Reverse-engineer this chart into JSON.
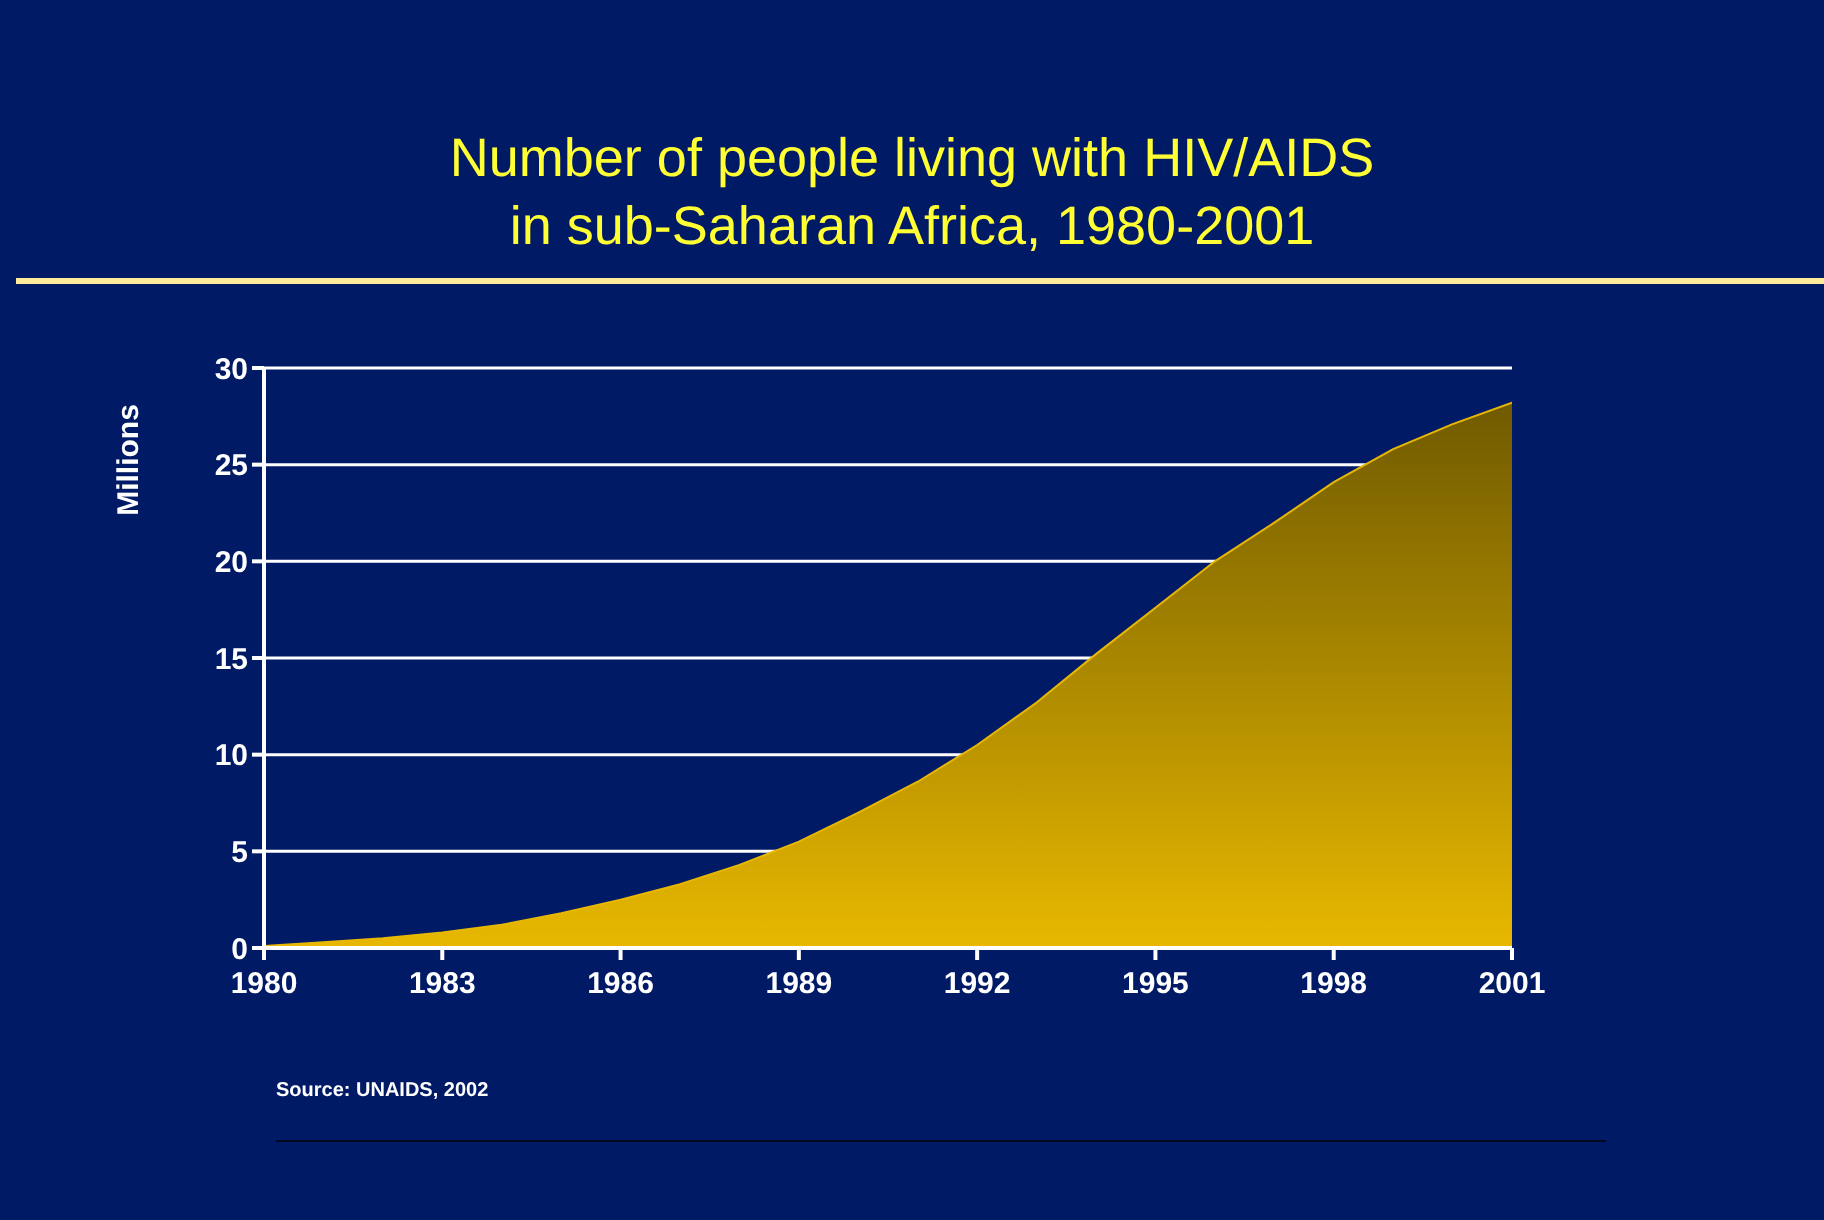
{
  "chart_data": {
    "type": "area",
    "title": "Number of people living with HIV/AIDS\nin sub-Saharan Africa, 1980-2001",
    "ylabel": "Millions",
    "x": [
      1980,
      1981,
      1982,
      1983,
      1984,
      1985,
      1986,
      1987,
      1988,
      1989,
      1990,
      1991,
      1992,
      1993,
      1994,
      1995,
      1996,
      1997,
      1998,
      1999,
      2000,
      2001
    ],
    "values": [
      0.1,
      0.3,
      0.5,
      0.8,
      1.2,
      1.8,
      2.5,
      3.3,
      4.3,
      5.5,
      7.0,
      8.6,
      10.5,
      12.7,
      15.2,
      17.6,
      20.0,
      22.0,
      24.1,
      25.8,
      27.1,
      28.2
    ],
    "color": "#e8b800",
    "xlim": [
      1980,
      2001
    ],
    "xticks": [
      1980,
      1983,
      1986,
      1989,
      1992,
      1995,
      1998,
      2001
    ],
    "ylim": [
      0,
      30
    ],
    "yticks": [
      0,
      5,
      10,
      15,
      20,
      25,
      30
    ],
    "grid": "y",
    "annotations": [
      "Source:  UNAIDS, 2002"
    ]
  }
}
